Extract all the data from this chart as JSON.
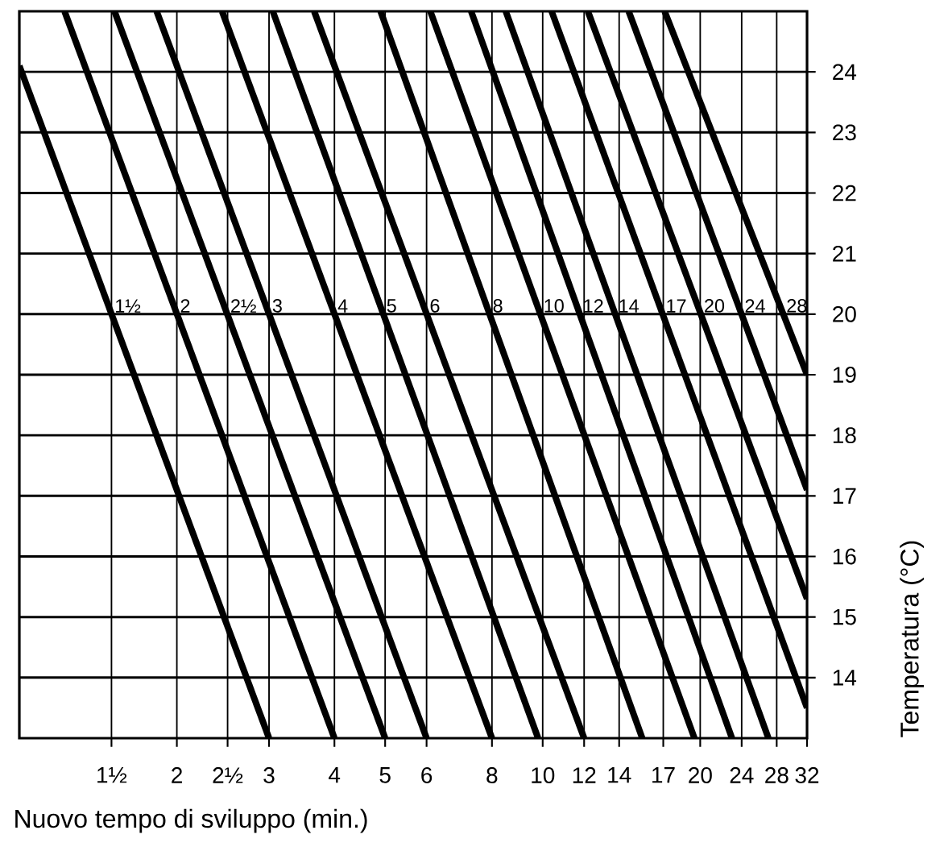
{
  "chart_data": {
    "type": "line",
    "xlabel": "Nuovo tempo di sviluppo (min.)",
    "ylabel": "Temperatura (°C)",
    "log": "x",
    "grid": true,
    "xlim": [
      1,
      32
    ],
    "ylim": [
      13,
      25
    ],
    "xticks": [
      {
        "value": 1.5,
        "label": "1½"
      },
      2,
      {
        "value": 2.5,
        "label": "2½"
      },
      3,
      4,
      5,
      6,
      8,
      10,
      12,
      14,
      17,
      20,
      24,
      28,
      32
    ],
    "yticks": [
      14,
      15,
      16,
      17,
      18,
      19,
      20,
      21,
      22,
      23,
      24
    ],
    "series": [
      {
        "name": "1½",
        "color": "#000000",
        "x": [
          1,
          3
        ],
        "values": [
          24.1,
          13
        ]
      },
      {
        "name": "2",
        "color": "#000000",
        "x": [
          1.22,
          4
        ],
        "values": [
          25,
          13
        ]
      },
      {
        "name": "2½",
        "color": "#000000",
        "x": [
          1.52,
          5
        ],
        "values": [
          25,
          13
        ]
      },
      {
        "name": "3",
        "color": "#000000",
        "x": [
          1.83,
          6
        ],
        "values": [
          25,
          13
        ]
      },
      {
        "name": "4",
        "color": "#000000",
        "x": [
          2.44,
          8
        ],
        "values": [
          25,
          13
        ]
      },
      {
        "name": "5",
        "color": "#000000",
        "x": [
          3.05,
          9.8
        ],
        "values": [
          25,
          13
        ]
      },
      {
        "name": "6",
        "color": "#000000",
        "x": [
          3.66,
          12
        ],
        "values": [
          25,
          13
        ]
      },
      {
        "name": "8",
        "color": "#000000",
        "x": [
          4.9,
          15.5
        ],
        "values": [
          25,
          13
        ]
      },
      {
        "name": "10",
        "color": "#000000",
        "x": [
          6.1,
          19.5
        ],
        "values": [
          25,
          13
        ]
      },
      {
        "name": "12",
        "color": "#000000",
        "x": [
          7.3,
          23
        ],
        "values": [
          25,
          13
        ]
      },
      {
        "name": "14",
        "color": "#000000",
        "x": [
          8.5,
          27
        ],
        "values": [
          25,
          13
        ]
      },
      {
        "name": "17",
        "color": "#000000",
        "x": [
          10.4,
          32
        ],
        "values": [
          25,
          13.5
        ]
      },
      {
        "name": "20",
        "color": "#000000",
        "x": [
          12.2,
          32
        ],
        "values": [
          25,
          15.3
        ]
      },
      {
        "name": "24",
        "color": "#000000",
        "x": [
          14.6,
          32
        ],
        "values": [
          25,
          17.1
        ]
      },
      {
        "name": "28",
        "color": "#000000",
        "x": [
          17.1,
          32
        ],
        "values": [
          25,
          19.0
        ]
      }
    ]
  }
}
